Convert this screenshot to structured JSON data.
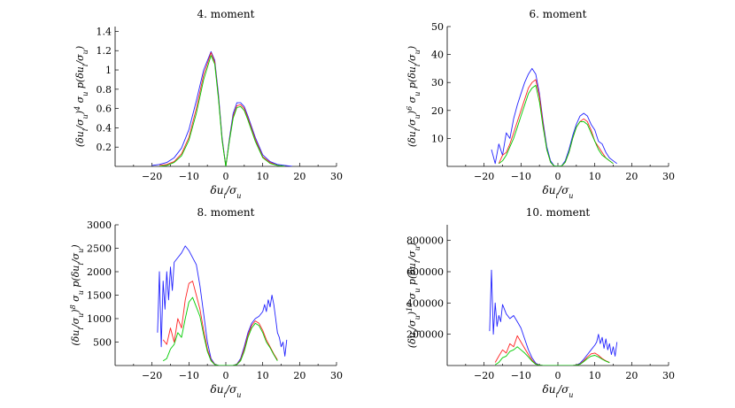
{
  "chart_data": [
    {
      "type": "line",
      "title": "4. moment",
      "xlabel": "δu_i/σ_u",
      "ylabel": "(δu_i/σ_u)^4 σ_u p(δu_i/σ_u)",
      "xlim": [
        -30,
        30
      ],
      "ylim": [
        0,
        1.45
      ],
      "xticks": [
        "−20",
        "−10",
        "0",
        "10",
        "20",
        "30"
      ],
      "yticks": [
        "0.2",
        "0.4",
        "0.6",
        "0.8",
        "1",
        "1.2",
        "1.4"
      ],
      "series": [
        {
          "color": "#2222ff",
          "x": [
            -20,
            -18,
            -16,
            -14,
            -12,
            -10,
            -8,
            -6,
            -4,
            -3,
            -2,
            -1,
            0,
            1,
            2,
            3,
            4,
            5,
            6,
            8,
            10,
            12,
            14,
            16,
            18
          ],
          "y": [
            0.01,
            0.02,
            0.04,
            0.09,
            0.19,
            0.38,
            0.68,
            1.0,
            1.19,
            1.1,
            0.75,
            0.3,
            0.0,
            0.3,
            0.55,
            0.66,
            0.66,
            0.62,
            0.52,
            0.3,
            0.12,
            0.05,
            0.02,
            0.01,
            0.0
          ]
        },
        {
          "color": "#ff2222",
          "x": [
            -18,
            -16,
            -14,
            -12,
            -10,
            -8,
            -6,
            -4,
            -3,
            -2,
            -1,
            0,
            1,
            2,
            3,
            4,
            5,
            6,
            8,
            10,
            12,
            14,
            16
          ],
          "y": [
            0.01,
            0.02,
            0.05,
            0.13,
            0.3,
            0.6,
            0.95,
            1.18,
            1.08,
            0.72,
            0.28,
            0.0,
            0.28,
            0.52,
            0.63,
            0.64,
            0.6,
            0.5,
            0.28,
            0.1,
            0.04,
            0.01,
            0.0
          ]
        },
        {
          "color": "#00cc00",
          "x": [
            -18,
            -16,
            -14,
            -12,
            -10,
            -8,
            -6,
            -4,
            -3,
            -2,
            -1,
            0,
            1,
            2,
            3,
            4,
            5,
            6,
            8,
            10,
            12,
            14,
            16
          ],
          "y": [
            0.0,
            0.01,
            0.04,
            0.11,
            0.27,
            0.55,
            0.9,
            1.15,
            1.06,
            0.7,
            0.27,
            0.0,
            0.27,
            0.5,
            0.61,
            0.62,
            0.58,
            0.48,
            0.26,
            0.09,
            0.03,
            0.01,
            0.0
          ]
        }
      ]
    },
    {
      "type": "line",
      "title": "6. moment",
      "xlabel": "δu_i/σ_u",
      "ylabel": "(δu_i/σ_u)^6 σ_u p(δu_i/σ_u)",
      "xlim": [
        -30,
        30
      ],
      "ylim": [
        0,
        50
      ],
      "xticks": [
        "−20",
        "−10",
        "0",
        "10",
        "20",
        "30"
      ],
      "yticks": [
        "10",
        "20",
        "30",
        "40",
        "50"
      ],
      "series": [
        {
          "color": "#2222ff",
          "x": [
            -18,
            -17,
            -16,
            -15,
            -14,
            -13,
            -12,
            -11,
            -10,
            -9,
            -8,
            -7,
            -6,
            -5,
            -4,
            -3,
            -2,
            -1,
            0,
            1,
            2,
            3,
            4,
            5,
            6,
            7,
            8,
            9,
            10,
            11,
            12,
            13,
            14,
            15,
            16
          ],
          "y": [
            6,
            1,
            8,
            4,
            12,
            10,
            17,
            22,
            26,
            30,
            33,
            35,
            33,
            26,
            16,
            7,
            2,
            0.2,
            0,
            0.2,
            2,
            6,
            11,
            15,
            18,
            19,
            18,
            15,
            13,
            9,
            8,
            5,
            3,
            2,
            1
          ]
        },
        {
          "color": "#ff2222",
          "x": [
            -16,
            -15,
            -14,
            -13,
            -12,
            -11,
            -10,
            -9,
            -8,
            -7,
            -6,
            -5,
            -4,
            -3,
            -2,
            -1,
            0,
            1,
            2,
            3,
            4,
            5,
            6,
            7,
            8,
            9,
            10,
            11,
            12,
            13,
            14,
            15
          ],
          "y": [
            1,
            4,
            5,
            8,
            12,
            16,
            20,
            24,
            28,
            30,
            31,
            25,
            15,
            6,
            1.5,
            0.1,
            0,
            0.1,
            1.5,
            5,
            10,
            14,
            16,
            17,
            16,
            13,
            9,
            7,
            5,
            3,
            2,
            1
          ]
        },
        {
          "color": "#00cc00",
          "x": [
            -16,
            -15,
            -14,
            -13,
            -12,
            -11,
            -10,
            -9,
            -8,
            -7,
            -6,
            -5,
            -4,
            -3,
            -2,
            -1,
            0,
            1,
            2,
            3,
            4,
            5,
            6,
            7,
            8,
            9,
            10,
            11,
            12,
            13,
            14,
            15
          ],
          "y": [
            1,
            2,
            4,
            7,
            10,
            14,
            18,
            22,
            26,
            28,
            29,
            23,
            14,
            6,
            1.5,
            0.1,
            0,
            0.1,
            1.5,
            5,
            10,
            14,
            16,
            16,
            15,
            12,
            9,
            6,
            4,
            3,
            2,
            1
          ]
        }
      ]
    },
    {
      "type": "line",
      "title": "8. moment",
      "xlabel": "δu_i/σ_u",
      "ylabel": "(δu_i/σ_u)^8 σ_u p(δu_i/σ_u)",
      "xlim": [
        -30,
        30
      ],
      "ylim": [
        0,
        3000
      ],
      "xticks": [
        "−20",
        "−10",
        "0",
        "10",
        "20",
        "30"
      ],
      "yticks": [
        "500",
        "1000",
        "1500",
        "2000",
        "2500",
        "3000"
      ],
      "series": [
        {
          "color": "#2222ff",
          "x": [
            -18.5,
            -18,
            -17.5,
            -17,
            -16.5,
            -16,
            -15.5,
            -15,
            -14.5,
            -14,
            -13,
            -12,
            -11,
            -10,
            -9,
            -8,
            -7,
            -6,
            -5,
            -4,
            -3,
            -2,
            -1,
            0,
            1,
            2,
            3,
            4,
            5,
            6,
            7,
            8,
            9,
            10,
            10.5,
            11,
            11.5,
            12,
            12.5,
            13,
            13.5,
            14,
            14.5,
            15,
            15.5,
            16,
            16.5
          ],
          "y": [
            700,
            2000,
            400,
            1800,
            1200,
            2000,
            1400,
            2100,
            1600,
            2200,
            2300,
            2400,
            2550,
            2450,
            2300,
            2150,
            1700,
            1100,
            500,
            150,
            30,
            3,
            0,
            0,
            0,
            3,
            30,
            150,
            400,
            700,
            900,
            1000,
            1050,
            1150,
            1300,
            1150,
            1400,
            1250,
            1500,
            1300,
            1000,
            700,
            600,
            400,
            500,
            200,
            550
          ]
        },
        {
          "color": "#ff2222",
          "x": [
            -17,
            -16,
            -15,
            -14,
            -13,
            -12,
            -11,
            -10,
            -9,
            -8,
            -7,
            -6,
            -5,
            -4,
            -3,
            -2,
            -1,
            0,
            1,
            2,
            3,
            4,
            5,
            6,
            7,
            8,
            9,
            10,
            11,
            12,
            13,
            14
          ],
          "y": [
            550,
            450,
            800,
            500,
            1000,
            800,
            1400,
            1750,
            1800,
            1500,
            1200,
            750,
            350,
            120,
            25,
            2,
            0,
            0,
            0,
            2,
            25,
            120,
            350,
            650,
            850,
            950,
            900,
            750,
            550,
            400,
            250,
            120
          ]
        },
        {
          "color": "#00cc00",
          "x": [
            -17,
            -16,
            -15,
            -14,
            -13,
            -12,
            -11,
            -10,
            -9,
            -8,
            -7,
            -6,
            -5,
            -4,
            -3,
            -2,
            -1,
            0,
            1,
            2,
            3,
            4,
            5,
            6,
            7,
            8,
            9,
            10,
            11,
            12,
            13,
            14
          ],
          "y": [
            100,
            150,
            350,
            450,
            700,
            600,
            1000,
            1350,
            1450,
            1250,
            1050,
            650,
            300,
            100,
            20,
            2,
            0,
            0,
            0,
            2,
            20,
            100,
            300,
            600,
            800,
            900,
            850,
            700,
            500,
            380,
            230,
            100
          ]
        }
      ]
    },
    {
      "type": "line",
      "title": "10. moment",
      "xlabel": "δu_i/σ_u",
      "ylabel": "(δu_i/σ_u)^10 σ_u p(δu_i/σ_u)",
      "xlim": [
        -30,
        30
      ],
      "ylim": [
        0,
        900000
      ],
      "xticks": [
        "−20",
        "−10",
        "0",
        "10",
        "20",
        "30"
      ],
      "yticks": [
        "200000",
        "400000",
        "600000",
        "800000"
      ],
      "series": [
        {
          "color": "#2222ff",
          "x": [
            -18.5,
            -18,
            -17.5,
            -17,
            -16.5,
            -16,
            -15.5,
            -15,
            -14,
            -13,
            -12,
            -11,
            -10,
            -9,
            -8,
            -7,
            -6,
            -5,
            -4,
            -3,
            -2,
            -1,
            0,
            1,
            2,
            3,
            4,
            5,
            6,
            7,
            8,
            9,
            10,
            10.5,
            11,
            11.5,
            12,
            12.5,
            13,
            13.5,
            14,
            14.5,
            15,
            15.5,
            16
          ],
          "y": [
            220000,
            610000,
            200000,
            400000,
            250000,
            320000,
            280000,
            390000,
            330000,
            300000,
            320000,
            280000,
            240000,
            170000,
            100000,
            50000,
            15000,
            3000,
            300,
            0,
            0,
            0,
            0,
            0,
            0,
            0,
            300,
            3000,
            15000,
            40000,
            70000,
            100000,
            130000,
            150000,
            200000,
            140000,
            180000,
            110000,
            170000,
            100000,
            140000,
            70000,
            120000,
            60000,
            150000
          ]
        },
        {
          "color": "#ff2222",
          "x": [
            -17,
            -16,
            -15,
            -14,
            -13,
            -12,
            -11,
            -10,
            -9,
            -8,
            -7,
            -6,
            -5,
            -4,
            -3,
            -2,
            -1,
            0,
            1,
            2,
            3,
            4,
            5,
            6,
            7,
            8,
            9,
            10,
            11,
            12,
            13,
            14
          ],
          "y": [
            20000,
            60000,
            100000,
            80000,
            140000,
            120000,
            190000,
            150000,
            110000,
            70000,
            35000,
            10000,
            2000,
            200,
            0,
            0,
            0,
            0,
            0,
            0,
            0,
            200,
            2000,
            10000,
            30000,
            55000,
            75000,
            80000,
            65000,
            45000,
            30000,
            20000
          ]
        },
        {
          "color": "#00cc00",
          "x": [
            -17,
            -16,
            -15,
            -14,
            -13,
            -12,
            -11,
            -10,
            -9,
            -8,
            -7,
            -6,
            -5,
            -4,
            -3,
            -2,
            -1,
            0,
            1,
            2,
            3,
            4,
            5,
            6,
            7,
            8,
            9,
            10,
            11,
            12,
            13,
            14
          ],
          "y": [
            5000,
            20000,
            50000,
            60000,
            90000,
            100000,
            120000,
            100000,
            80000,
            55000,
            28000,
            8000,
            1500,
            150,
            0,
            0,
            0,
            0,
            0,
            0,
            0,
            150,
            1500,
            8000,
            25000,
            45000,
            60000,
            65000,
            55000,
            40000,
            28000,
            18000
          ]
        }
      ]
    }
  ]
}
